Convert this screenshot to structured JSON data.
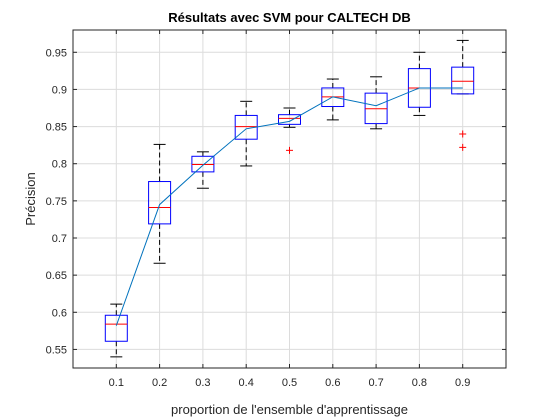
{
  "chart_data": {
    "type": "boxplot",
    "title": "Résultats avec SVM pour CALTECH DB",
    "xlabel": "proportion de l'ensemble d'apprentissage",
    "ylabel": "Précision",
    "categories": [
      "0.1",
      "0.2",
      "0.3",
      "0.4",
      "0.5",
      "0.6",
      "0.7",
      "0.8",
      "0.9"
    ],
    "ylim": [
      0.525,
      0.98
    ],
    "yticks": [
      0.55,
      0.6,
      0.65,
      0.7,
      0.75,
      0.8,
      0.85,
      0.9,
      0.95
    ],
    "ytick_labels": [
      "0.55",
      "0.6",
      "0.65",
      "0.7",
      "0.75",
      "0.8",
      "0.85",
      "0.9",
      "0.95"
    ],
    "grid": true,
    "boxes": [
      {
        "x": "0.1",
        "whisker_low": 0.54,
        "q1": 0.561,
        "median": 0.584,
        "q3": 0.596,
        "whisker_high": 0.611,
        "outliers": []
      },
      {
        "x": "0.2",
        "whisker_low": 0.666,
        "q1": 0.719,
        "median": 0.741,
        "q3": 0.776,
        "whisker_high": 0.826,
        "outliers": []
      },
      {
        "x": "0.3",
        "whisker_low": 0.767,
        "q1": 0.789,
        "median": 0.799,
        "q3": 0.81,
        "whisker_high": 0.816,
        "outliers": []
      },
      {
        "x": "0.4",
        "whisker_low": 0.797,
        "q1": 0.833,
        "median": 0.85,
        "q3": 0.865,
        "whisker_high": 0.884,
        "outliers": []
      },
      {
        "x": "0.5",
        "whisker_low": 0.849,
        "q1": 0.853,
        "median": 0.861,
        "q3": 0.866,
        "whisker_high": 0.875,
        "outliers": [
          0.818
        ]
      },
      {
        "x": "0.6",
        "whisker_low": 0.859,
        "q1": 0.877,
        "median": 0.89,
        "q3": 0.902,
        "whisker_high": 0.914,
        "outliers": []
      },
      {
        "x": "0.7",
        "whisker_low": 0.847,
        "q1": 0.854,
        "median": 0.874,
        "q3": 0.895,
        "whisker_high": 0.917,
        "outliers": []
      },
      {
        "x": "0.8",
        "whisker_low": 0.865,
        "q1": 0.876,
        "median": 0.902,
        "q3": 0.928,
        "whisker_high": 0.95,
        "outliers": []
      },
      {
        "x": "0.9",
        "whisker_low": 0.894,
        "q1": 0.894,
        "median": 0.911,
        "q3": 0.93,
        "whisker_high": 0.966,
        "outliers": [
          0.84,
          0.822
        ]
      }
    ],
    "mean_line": [
      0.582,
      0.745,
      0.798,
      0.847,
      0.857,
      0.89,
      0.878,
      0.902,
      0.902
    ],
    "colors": {
      "box": "#0000ff",
      "median": "#ff0000",
      "whisker": "#000000",
      "outlier": "#ff0000",
      "mean_line": "#0072bd",
      "grid": "#dcdcdc",
      "axis": "#262626"
    }
  }
}
